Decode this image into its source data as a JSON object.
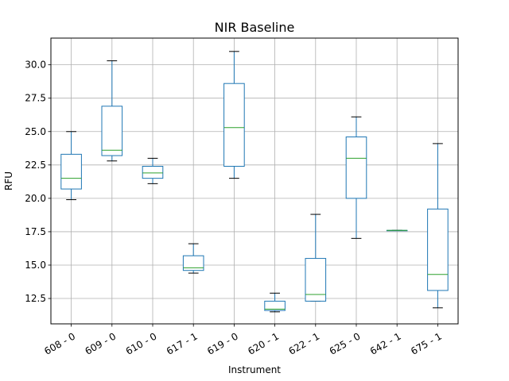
{
  "chart_data": {
    "type": "box",
    "title": "NIR Baseline",
    "xlabel": "Instrument",
    "ylabel": "RFU",
    "ylim": [
      10.6,
      32.0
    ],
    "yticks": [
      12.5,
      15.0,
      17.5,
      20.0,
      22.5,
      25.0,
      27.5,
      30.0
    ],
    "ytick_labels": [
      "12.5",
      "15.0",
      "17.5",
      "20.0",
      "22.5",
      "25.0",
      "27.5",
      "30.0"
    ],
    "grid": true,
    "colors": {
      "box": "#1f77b4",
      "median": "#2ca02c",
      "whisker": "#000000",
      "grid": "#b0b0b0"
    },
    "categories": [
      "608 - 0",
      "609 - 0",
      "610 - 0",
      "617 - 1",
      "619 - 0",
      "620 - 1",
      "622 - 1",
      "625 - 0",
      "642 - 1",
      "675 - 1"
    ],
    "boxes": [
      {
        "category": "608 - 0",
        "whislo": 19.9,
        "q1": 20.7,
        "med": 21.5,
        "q3": 23.3,
        "whishi": 25.0
      },
      {
        "category": "609 - 0",
        "whislo": 22.8,
        "q1": 23.2,
        "med": 23.6,
        "q3": 26.9,
        "whishi": 30.3
      },
      {
        "category": "610 - 0",
        "whislo": 21.1,
        "q1": 21.5,
        "med": 21.9,
        "q3": 22.4,
        "whishi": 23.0
      },
      {
        "category": "617 - 1",
        "whislo": 14.4,
        "q1": 14.6,
        "med": 14.8,
        "q3": 15.7,
        "whishi": 16.6
      },
      {
        "category": "619 - 0",
        "whislo": 21.5,
        "q1": 22.4,
        "med": 25.3,
        "q3": 28.6,
        "whishi": 31.0
      },
      {
        "category": "620 - 1",
        "whislo": 11.5,
        "q1": 11.6,
        "med": 11.7,
        "q3": 12.3,
        "whishi": 12.9
      },
      {
        "category": "622 - 1",
        "whislo": 12.3,
        "q1": 12.3,
        "med": 12.8,
        "q3": 15.5,
        "whishi": 18.8
      },
      {
        "category": "625 - 0",
        "whislo": 17.0,
        "q1": 20.0,
        "med": 23.0,
        "q3": 24.6,
        "whishi": 26.1
      },
      {
        "category": "642 - 1",
        "whislo": 17.6,
        "q1": 17.6,
        "med": 17.6,
        "q3": 17.6,
        "whishi": 17.6
      },
      {
        "category": "675 - 1",
        "whislo": 11.8,
        "q1": 13.1,
        "med": 14.3,
        "q3": 19.2,
        "whishi": 24.1
      }
    ]
  }
}
